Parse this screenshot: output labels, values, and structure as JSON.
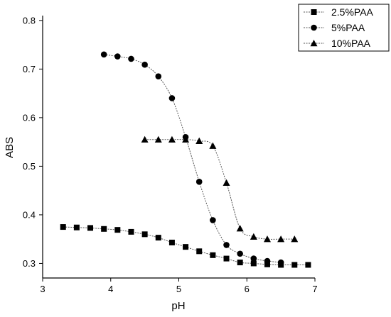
{
  "chart_data": {
    "type": "line",
    "title": "",
    "xlabel": "pH",
    "ylabel": "ABS",
    "xlim": [
      3,
      7
    ],
    "ylim": [
      0.27,
      0.81
    ],
    "xticks": [
      "3",
      "4",
      "5",
      "6",
      "7"
    ],
    "yticks": [
      "0.3",
      "0.4",
      "0.5",
      "0.6",
      "0.7",
      "0.8"
    ],
    "grid": false,
    "legend_position": "top-right",
    "series": [
      {
        "name": "2.5%PAA",
        "marker": "square",
        "points": [
          [
            3.3,
            0.375
          ],
          [
            3.5,
            0.374
          ],
          [
            3.7,
            0.373
          ],
          [
            3.9,
            0.371
          ],
          [
            4.1,
            0.369
          ],
          [
            4.3,
            0.365
          ],
          [
            4.5,
            0.36
          ],
          [
            4.7,
            0.353
          ],
          [
            4.9,
            0.343
          ],
          [
            5.1,
            0.334
          ],
          [
            5.3,
            0.325
          ],
          [
            5.5,
            0.317
          ],
          [
            5.7,
            0.31
          ],
          [
            5.9,
            0.302
          ],
          [
            6.1,
            0.3
          ],
          [
            6.3,
            0.298
          ],
          [
            6.5,
            0.297
          ],
          [
            6.7,
            0.297
          ],
          [
            6.9,
            0.297
          ]
        ]
      },
      {
        "name": "5%PAA",
        "marker": "circle",
        "points": [
          [
            3.9,
            0.73
          ],
          [
            4.1,
            0.726
          ],
          [
            4.3,
            0.721
          ],
          [
            4.5,
            0.709
          ],
          [
            4.7,
            0.685
          ],
          [
            4.9,
            0.64
          ],
          [
            5.1,
            0.56
          ],
          [
            5.3,
            0.468
          ],
          [
            5.5,
            0.389
          ],
          [
            5.7,
            0.338
          ],
          [
            5.9,
            0.32
          ],
          [
            6.1,
            0.31
          ],
          [
            6.3,
            0.305
          ],
          [
            6.5,
            0.302
          ]
        ]
      },
      {
        "name": "10%PAA",
        "marker": "triangle",
        "points": [
          [
            4.5,
            0.555
          ],
          [
            4.7,
            0.555
          ],
          [
            4.9,
            0.555
          ],
          [
            5.1,
            0.555
          ],
          [
            5.3,
            0.552
          ],
          [
            5.5,
            0.542
          ],
          [
            5.7,
            0.466
          ],
          [
            5.9,
            0.372
          ],
          [
            6.1,
            0.355
          ],
          [
            6.3,
            0.35
          ],
          [
            6.5,
            0.35
          ],
          [
            6.7,
            0.35
          ]
        ]
      }
    ]
  }
}
